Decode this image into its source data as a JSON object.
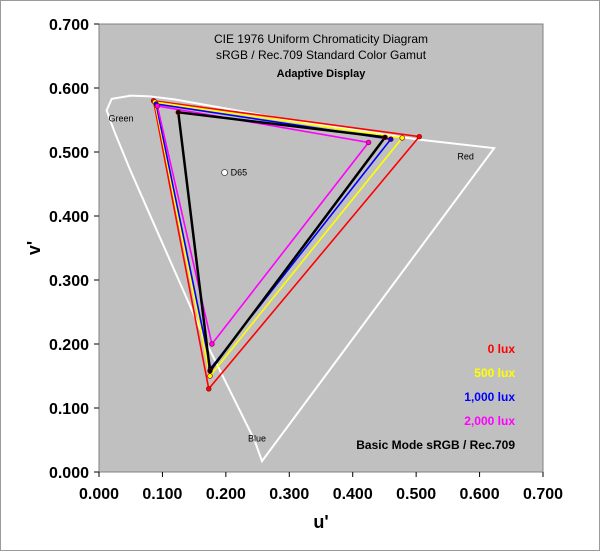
{
  "chart_data": {
    "type": "scatter",
    "title": "CIE 1976 Uniform Chromaticity Diagram",
    "subtitle": "sRGB / Rec.709 Standard Color Gamut",
    "subtitle2": "Adaptive Display",
    "xlabel": "u'",
    "ylabel": "v'",
    "xlim": [
      0,
      0.7
    ],
    "ylim": [
      0,
      0.7
    ],
    "xticks": [
      "0.000",
      "0.100",
      "0.200",
      "0.300",
      "0.400",
      "0.500",
      "0.600",
      "0.700"
    ],
    "yticks": [
      "0.000",
      "0.100",
      "0.200",
      "0.300",
      "0.400",
      "0.500",
      "0.600",
      "0.700"
    ],
    "plot_background": "#c0c0c0",
    "spectral_locus": [
      [
        0.257,
        0.017
      ],
      [
        0.245,
        0.05
      ],
      [
        0.21,
        0.12
      ],
      [
        0.17,
        0.2
      ],
      [
        0.13,
        0.29
      ],
      [
        0.09,
        0.38
      ],
      [
        0.05,
        0.47
      ],
      [
        0.025,
        0.53
      ],
      [
        0.012,
        0.565
      ],
      [
        0.02,
        0.583
      ],
      [
        0.05,
        0.588
      ],
      [
        0.08,
        0.587
      ],
      [
        0.12,
        0.582
      ],
      [
        0.2,
        0.568
      ],
      [
        0.3,
        0.55
      ],
      [
        0.4,
        0.535
      ],
      [
        0.5,
        0.52
      ],
      [
        0.623,
        0.506
      ]
    ],
    "white_point": {
      "label": "D65",
      "u": 0.198,
      "v": 0.468
    },
    "region_labels": [
      {
        "label": "Green",
        "u": 0.015,
        "v": 0.548
      },
      {
        "label": "Red",
        "u": 0.565,
        "v": 0.488
      },
      {
        "label": "Blue",
        "u": 0.235,
        "v": 0.048
      }
    ],
    "series": [
      {
        "name": "0 lux",
        "color": "#ff0000",
        "points": [
          [
            0.173,
            0.13
          ],
          [
            0.086,
            0.58
          ],
          [
            0.505,
            0.524
          ]
        ]
      },
      {
        "name": "500 lux",
        "color": "#ffff00",
        "points": [
          [
            0.175,
            0.15
          ],
          [
            0.088,
            0.578
          ],
          [
            0.478,
            0.522
          ]
        ]
      },
      {
        "name": "1,000 lux",
        "color": "#0000ff",
        "points": [
          [
            0.176,
            0.162
          ],
          [
            0.09,
            0.575
          ],
          [
            0.46,
            0.52
          ]
        ]
      },
      {
        "name": "2,000 lux",
        "color": "#ff00ff",
        "points": [
          [
            0.178,
            0.2
          ],
          [
            0.092,
            0.572
          ],
          [
            0.425,
            0.515
          ]
        ]
      },
      {
        "name": "Basic Mode  sRGB / Rec.709",
        "color": "#000000",
        "points": [
          [
            0.175,
            0.158
          ],
          [
            0.125,
            0.562
          ],
          [
            0.451,
            0.523
          ]
        ]
      }
    ],
    "legend_position": "bottom-right"
  }
}
